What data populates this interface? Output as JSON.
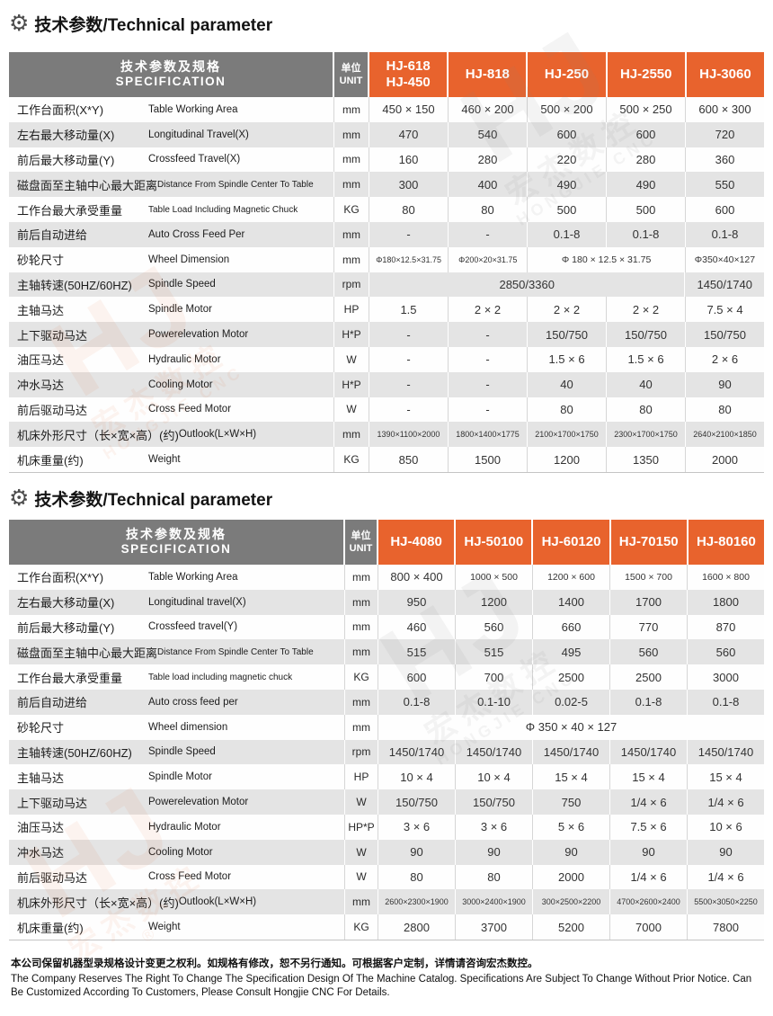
{
  "titles": {
    "icon_glyph": "⚙",
    "section1": "技术参数/Technical parameter",
    "section2": "技术参数/Technical parameter"
  },
  "colors": {
    "accent_orange": "#e8632d",
    "header_gray": "#7b7b7b",
    "stripe_gray": "#e4e4e4"
  },
  "watermark": {
    "logo": "HJ",
    "reg": "®",
    "zh": "宏杰数控",
    "en": "HONGJIE CNC"
  },
  "footer": {
    "zh": "本公司保留机器型录规格设计变更之权利。如规格有修改，恕不另行通知。可根据客户定制，详情请咨询宏杰数控。",
    "en": "The Company Reserves The Right To Change The Specification Design Of The Machine Catalog. Specifications Are Subject To Change Without Prior Notice. Can Be Customized According To Customers, Please Consult Hongjie CNC For Details."
  },
  "tables": [
    {
      "header": {
        "spec_zh": "技术参数及规格",
        "spec_en": "SPECIFICATION",
        "unit_zh": "单位",
        "unit_en": "UNIT",
        "models": [
          "HJ-618\nHJ-450",
          "HJ-818",
          "HJ-250",
          "HJ-2550",
          "HJ-3060"
        ]
      },
      "rows": [
        {
          "zh": "工作台面积(X*Y)",
          "en": "Table Working Area",
          "unit": "mm",
          "values": [
            {
              "t": "450 × 150"
            },
            {
              "t": "460 × 200"
            },
            {
              "t": "500 × 200"
            },
            {
              "t": "500 × 250"
            },
            {
              "t": "600 × 300"
            }
          ]
        },
        {
          "zh": "左右最大移动量(X)",
          "en": "Longitudinal Travel(X)",
          "unit": "mm",
          "values": [
            {
              "t": "470"
            },
            {
              "t": "540"
            },
            {
              "t": "600"
            },
            {
              "t": "600"
            },
            {
              "t": "720"
            }
          ]
        },
        {
          "zh": "前后最大移动量(Y)",
          "en": "Crossfeed Travel(X)",
          "unit": "mm",
          "values": [
            {
              "t": "160"
            },
            {
              "t": "280"
            },
            {
              "t": "220"
            },
            {
              "t": "280"
            },
            {
              "t": "360"
            }
          ]
        },
        {
          "zh": "磁盘面至主轴中心最大距离",
          "en": "Distance From Spindle Center To Table",
          "unit": "mm",
          "values": [
            {
              "t": "300"
            },
            {
              "t": "400"
            },
            {
              "t": "490"
            },
            {
              "t": "490"
            },
            {
              "t": "550"
            }
          ]
        },
        {
          "zh": "工作台最大承受重量",
          "en": "Table Load Including Magnetic Chuck",
          "unit": "KG",
          "values": [
            {
              "t": "80"
            },
            {
              "t": "80"
            },
            {
              "t": "500"
            },
            {
              "t": "500"
            },
            {
              "t": "600"
            }
          ]
        },
        {
          "zh": "前后自动进给",
          "en": "Auto Cross Feed Per",
          "unit": "mm",
          "values": [
            {
              "t": "-"
            },
            {
              "t": "-"
            },
            {
              "t": "0.1-8"
            },
            {
              "t": "0.1-8"
            },
            {
              "t": "0.1-8"
            }
          ]
        },
        {
          "zh": "砂轮尺寸",
          "en": "Wheel Dimension",
          "unit": "mm",
          "values": [
            {
              "t": "Φ180×12.5×31.75"
            },
            {
              "t": "Φ200×20×31.75"
            },
            {
              "t": "Φ 180 × 12.5 × 31.75",
              "s": 2
            },
            {
              "t": "Φ350×40×127"
            }
          ]
        },
        {
          "zh": "主轴转速(50HZ/60HZ)",
          "en": "Spindle Speed",
          "unit": "rpm",
          "values": [
            {
              "t": "2850/3360",
              "s": 4
            },
            {
              "t": "1450/1740"
            }
          ]
        },
        {
          "zh": "主轴马达",
          "en": "Spindle Motor",
          "unit": "HP",
          "values": [
            {
              "t": "1.5"
            },
            {
              "t": "2 × 2"
            },
            {
              "t": "2 × 2"
            },
            {
              "t": "2 × 2"
            },
            {
              "t": "7.5 × 4"
            }
          ]
        },
        {
          "zh": "上下驱动马达",
          "en": "Powerelevation Motor",
          "unit": "H*P",
          "values": [
            {
              "t": "-"
            },
            {
              "t": "-"
            },
            {
              "t": "150/750"
            },
            {
              "t": "150/750"
            },
            {
              "t": "150/750"
            }
          ]
        },
        {
          "zh": "油压马达",
          "en": "Hydraulic Motor",
          "unit": "W",
          "values": [
            {
              "t": "-"
            },
            {
              "t": "-"
            },
            {
              "t": "1.5 × 6"
            },
            {
              "t": "1.5 × 6"
            },
            {
              "t": "2 × 6"
            }
          ]
        },
        {
          "zh": "冲水马达",
          "en": "Cooling Motor",
          "unit": "H*P",
          "values": [
            {
              "t": "-"
            },
            {
              "t": "-"
            },
            {
              "t": "40"
            },
            {
              "t": "40"
            },
            {
              "t": "90"
            }
          ]
        },
        {
          "zh": "前后驱动马达",
          "en": "Cross Feed Motor",
          "unit": "W",
          "values": [
            {
              "t": "-"
            },
            {
              "t": "-"
            },
            {
              "t": "80"
            },
            {
              "t": "80"
            },
            {
              "t": "80"
            }
          ]
        },
        {
          "zh": "机床外形尺寸（长×宽×高）(约)",
          "en": "Outlook(L×W×H)",
          "unit": "mm",
          "values": [
            {
              "t": "1390×1100×2000"
            },
            {
              "t": "1800×1400×1775"
            },
            {
              "t": "2100×1700×1750"
            },
            {
              "t": "2300×1700×1750"
            },
            {
              "t": "2640×2100×1850"
            }
          ]
        },
        {
          "zh": "机床重量(约)",
          "en": "Weight",
          "unit": "KG",
          "values": [
            {
              "t": "850"
            },
            {
              "t": "1500"
            },
            {
              "t": "1200"
            },
            {
              "t": "1350"
            },
            {
              "t": "2000"
            }
          ]
        }
      ]
    },
    {
      "header": {
        "spec_zh": "技术参数及规格",
        "spec_en": "SPECIFICATION",
        "unit_zh": "单位",
        "unit_en": "UNIT",
        "models": [
          "HJ-4080",
          "HJ-50100",
          "HJ-60120",
          "HJ-70150",
          "HJ-80160"
        ]
      },
      "rows": [
        {
          "zh": "工作台面积(X*Y)",
          "en": "Table Working Area",
          "unit": "mm",
          "values": [
            {
              "t": "800 × 400"
            },
            {
              "t": "1000 × 500"
            },
            {
              "t": "1200 × 600"
            },
            {
              "t": "1500 × 700"
            },
            {
              "t": "1600 × 800"
            }
          ]
        },
        {
          "zh": "左右最大移动量(X)",
          "en": "Longitudinal travel(X)",
          "unit": "mm",
          "values": [
            {
              "t": "950"
            },
            {
              "t": "1200"
            },
            {
              "t": "1400"
            },
            {
              "t": "1700"
            },
            {
              "t": "1800"
            }
          ]
        },
        {
          "zh": "前后最大移动量(Y)",
          "en": "Crossfeed travel(Y)",
          "unit": "mm",
          "values": [
            {
              "t": "460"
            },
            {
              "t": "560"
            },
            {
              "t": "660"
            },
            {
              "t": "770"
            },
            {
              "t": "870"
            }
          ]
        },
        {
          "zh": "磁盘面至主轴中心最大距离",
          "en": "Distance From Spindle Center To Table",
          "unit": "mm",
          "values": [
            {
              "t": "515"
            },
            {
              "t": "515"
            },
            {
              "t": "495"
            },
            {
              "t": "560"
            },
            {
              "t": "560"
            }
          ]
        },
        {
          "zh": "工作台最大承受重量",
          "en": "Table load including magnetic chuck",
          "unit": "KG",
          "values": [
            {
              "t": "600"
            },
            {
              "t": "700"
            },
            {
              "t": "2500"
            },
            {
              "t": "2500"
            },
            {
              "t": "3000"
            }
          ]
        },
        {
          "zh": "前后自动进给",
          "en": "Auto cross feed per",
          "unit": "mm",
          "values": [
            {
              "t": "0.1-8"
            },
            {
              "t": "0.1-10"
            },
            {
              "t": "0.02-5"
            },
            {
              "t": "0.1-8"
            },
            {
              "t": "0.1-8"
            }
          ]
        },
        {
          "zh": "砂轮尺寸",
          "en": "Wheel dimension",
          "unit": "mm",
          "values": [
            {
              "t": "Φ 350 × 40 × 127",
              "s": 5
            }
          ]
        },
        {
          "zh": "主轴转速(50HZ/60HZ)",
          "en": "Spindle Speed",
          "unit": "rpm",
          "values": [
            {
              "t": "1450/1740"
            },
            {
              "t": "1450/1740"
            },
            {
              "t": "1450/1740"
            },
            {
              "t": "1450/1740"
            },
            {
              "t": "1450/1740"
            }
          ]
        },
        {
          "zh": "主轴马达",
          "en": "Spindle Motor",
          "unit": "HP",
          "values": [
            {
              "t": "10 × 4"
            },
            {
              "t": "10 × 4"
            },
            {
              "t": "15 × 4"
            },
            {
              "t": "15 × 4"
            },
            {
              "t": "15 × 4"
            }
          ]
        },
        {
          "zh": "上下驱动马达",
          "en": "Powerelevation Motor",
          "unit": "W",
          "values": [
            {
              "t": "150/750"
            },
            {
              "t": "150/750"
            },
            {
              "t": "750"
            },
            {
              "t": "1/4 × 6"
            },
            {
              "t": "1/4 × 6"
            }
          ]
        },
        {
          "zh": "油压马达",
          "en": "Hydraulic Motor",
          "unit": "HP*P",
          "values": [
            {
              "t": "3 × 6"
            },
            {
              "t": "3 × 6"
            },
            {
              "t": "5 × 6"
            },
            {
              "t": "7.5 × 6"
            },
            {
              "t": "10 × 6"
            }
          ]
        },
        {
          "zh": "冲水马达",
          "en": "Cooling Motor",
          "unit": "W",
          "values": [
            {
              "t": "90"
            },
            {
              "t": "90"
            },
            {
              "t": "90"
            },
            {
              "t": "90"
            },
            {
              "t": "90"
            }
          ]
        },
        {
          "zh": "前后驱动马达",
          "en": "Cross Feed Motor",
          "unit": "W",
          "values": [
            {
              "t": "80"
            },
            {
              "t": "80"
            },
            {
              "t": "2000"
            },
            {
              "t": "1/4 × 6"
            },
            {
              "t": "1/4 × 6"
            }
          ]
        },
        {
          "zh": "机床外形尺寸（长×宽×高）(约)",
          "en": "Outlook(L×W×H)",
          "unit": "mm",
          "values": [
            {
              "t": "2600×2300×1900"
            },
            {
              "t": "3000×2400×1900"
            },
            {
              "t": "300×2500×2200"
            },
            {
              "t": "4700×2600×2400"
            },
            {
              "t": "5500×3050×2250"
            }
          ]
        },
        {
          "zh": "机床重量(约)",
          "en": "Weight",
          "unit": "KG",
          "values": [
            {
              "t": "2800"
            },
            {
              "t": "3700"
            },
            {
              "t": "5200"
            },
            {
              "t": "7000"
            },
            {
              "t": "7800"
            }
          ]
        }
      ]
    }
  ]
}
